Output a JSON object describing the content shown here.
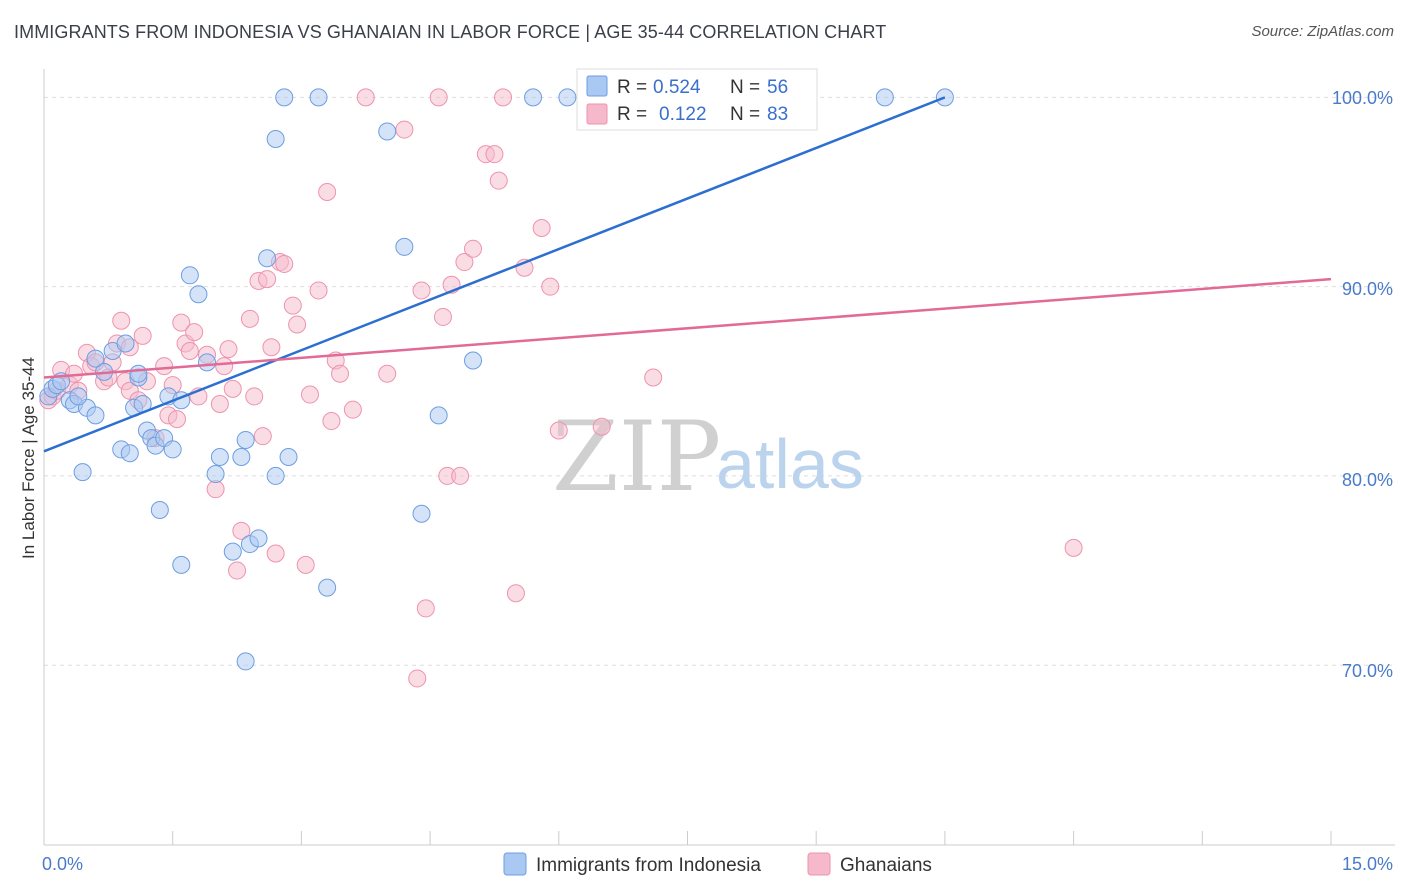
{
  "title": "IMMIGRANTS FROM INDONESIA VS GHANAIAN IN LABOR FORCE | AGE 35-44 CORRELATION CHART",
  "source": "Source: ZipAtlas.com",
  "watermark": {
    "zip": "ZIP",
    "atlas": "atlas"
  },
  "colors": {
    "blue_fill": "#a9c8f2",
    "blue_stroke": "#6d9ee0",
    "blue_line": "#2c6fd1",
    "pink_fill": "#f6b9cc",
    "pink_stroke": "#ee93ae",
    "pink_line": "#e26a96",
    "grid": "#dddddd",
    "axis": "#cccccc",
    "tick_text": "#4a7ac9"
  },
  "chart_data": {
    "type": "scatter",
    "title": "IMMIGRANTS FROM INDONESIA VS GHANAIAN IN LABOR FORCE | AGE 35-44 CORRELATION CHART",
    "xlabel": "",
    "ylabel": "In Labor Force | Age 35-44",
    "xlim": [
      0,
      15
    ],
    "ylim": [
      60.5,
      101.5
    ],
    "x_tick_labels": {
      "left": "0.0%",
      "right": "15.0%"
    },
    "y_ticks": [
      {
        "value": 70,
        "label": "70.0%"
      },
      {
        "value": 80,
        "label": "80.0%"
      },
      {
        "value": 90,
        "label": "90.0%"
      },
      {
        "value": 100,
        "label": "100.0%"
      }
    ],
    "legend_stats": [
      {
        "r_label": "R =",
        "r_value": "0.524",
        "n_label": "N =",
        "n_value": "56"
      },
      {
        "r_label": "R =",
        "r_value": "0.122",
        "n_label": "N =",
        "n_value": "83"
      }
    ],
    "series": [
      {
        "name": "Immigrants from Indonesia",
        "color": "blue",
        "trendline": {
          "x": [
            0,
            10.5
          ],
          "y": [
            81.3,
            100.0
          ]
        },
        "points": [
          [
            0.05,
            84.2
          ],
          [
            0.1,
            84.6
          ],
          [
            0.15,
            84.8
          ],
          [
            0.2,
            85.0
          ],
          [
            0.3,
            84.0
          ],
          [
            0.35,
            83.8
          ],
          [
            0.5,
            83.6
          ],
          [
            0.4,
            84.2
          ],
          [
            0.45,
            80.2
          ],
          [
            0.6,
            83.2
          ],
          [
            0.7,
            85.5
          ],
          [
            0.8,
            86.6
          ],
          [
            0.9,
            81.4
          ],
          [
            1.0,
            81.2
          ],
          [
            1.05,
            83.6
          ],
          [
            1.1,
            85.2
          ],
          [
            1.15,
            83.8
          ],
          [
            1.2,
            82.4
          ],
          [
            1.25,
            82.0
          ],
          [
            1.3,
            81.6
          ],
          [
            1.4,
            82.0
          ],
          [
            1.35,
            78.2
          ],
          [
            1.45,
            84.2
          ],
          [
            1.6,
            84.0
          ],
          [
            1.5,
            81.4
          ],
          [
            1.6,
            75.3
          ],
          [
            1.7,
            90.6
          ],
          [
            1.8,
            89.6
          ],
          [
            1.9,
            86.0
          ],
          [
            2.0,
            80.1
          ],
          [
            2.05,
            81.0
          ],
          [
            2.2,
            76.0
          ],
          [
            2.3,
            81.0
          ],
          [
            2.4,
            76.4
          ],
          [
            2.5,
            76.7
          ],
          [
            2.35,
            81.9
          ],
          [
            2.35,
            70.2
          ],
          [
            2.6,
            91.5
          ],
          [
            2.7,
            97.8
          ],
          [
            2.7,
            80.0
          ],
          [
            2.8,
            100.0
          ],
          [
            2.85,
            81.0
          ],
          [
            3.2,
            100.0
          ],
          [
            3.3,
            74.1
          ],
          [
            4.0,
            98.2
          ],
          [
            4.2,
            92.1
          ],
          [
            4.4,
            78.0
          ],
          [
            4.6,
            83.2
          ],
          [
            5.0,
            86.1
          ],
          [
            5.7,
            100.0
          ],
          [
            6.1,
            100.0
          ],
          [
            9.8,
            100.0
          ],
          [
            10.5,
            100.0
          ],
          [
            1.1,
            85.4
          ],
          [
            0.95,
            87.0
          ],
          [
            0.6,
            86.2
          ]
        ]
      },
      {
        "name": "Ghanaians",
        "color": "pink",
        "trendline": {
          "x": [
            0,
            15
          ],
          "y": [
            85.2,
            90.4
          ]
        },
        "points": [
          [
            0.05,
            84.0
          ],
          [
            0.1,
            84.2
          ],
          [
            0.15,
            84.5
          ],
          [
            0.2,
            85.6
          ],
          [
            0.3,
            84.8
          ],
          [
            0.35,
            85.4
          ],
          [
            0.4,
            84.5
          ],
          [
            0.5,
            86.5
          ],
          [
            0.55,
            85.8
          ],
          [
            0.6,
            86.0
          ],
          [
            0.7,
            85.0
          ],
          [
            0.75,
            85.2
          ],
          [
            0.8,
            86.0
          ],
          [
            0.85,
            87.0
          ],
          [
            0.9,
            88.2
          ],
          [
            0.95,
            85.0
          ],
          [
            1.0,
            84.5
          ],
          [
            1.1,
            84.0
          ],
          [
            1.15,
            87.4
          ],
          [
            1.2,
            85.0
          ],
          [
            1.3,
            82.0
          ],
          [
            1.4,
            85.8
          ],
          [
            1.45,
            83.2
          ],
          [
            1.5,
            84.8
          ],
          [
            1.55,
            83.0
          ],
          [
            1.6,
            88.1
          ],
          [
            1.65,
            87.0
          ],
          [
            1.7,
            86.6
          ],
          [
            1.75,
            87.6
          ],
          [
            1.8,
            84.2
          ],
          [
            1.9,
            86.4
          ],
          [
            2.0,
            79.3
          ],
          [
            2.05,
            83.8
          ],
          [
            2.1,
            85.8
          ],
          [
            2.15,
            86.7
          ],
          [
            2.2,
            84.6
          ],
          [
            2.25,
            75.0
          ],
          [
            2.3,
            77.1
          ],
          [
            2.4,
            88.3
          ],
          [
            2.45,
            84.2
          ],
          [
            2.5,
            90.3
          ],
          [
            2.55,
            82.1
          ],
          [
            2.6,
            90.4
          ],
          [
            2.65,
            86.8
          ],
          [
            2.7,
            75.9
          ],
          [
            2.75,
            91.3
          ],
          [
            2.8,
            91.2
          ],
          [
            2.9,
            89.0
          ],
          [
            2.95,
            88.0
          ],
          [
            3.05,
            75.3
          ],
          [
            3.1,
            84.3
          ],
          [
            3.2,
            89.8
          ],
          [
            3.3,
            95.0
          ],
          [
            3.35,
            82.9
          ],
          [
            3.4,
            86.1
          ],
          [
            3.45,
            85.4
          ],
          [
            3.6,
            83.5
          ],
          [
            3.75,
            100.0
          ],
          [
            4.0,
            85.4
          ],
          [
            4.2,
            98.3
          ],
          [
            4.35,
            69.3
          ],
          [
            4.4,
            89.8
          ],
          [
            4.45,
            73.0
          ],
          [
            4.6,
            100.0
          ],
          [
            4.65,
            88.4
          ],
          [
            4.7,
            80.0
          ],
          [
            4.75,
            90.1
          ],
          [
            4.85,
            80.0
          ],
          [
            4.9,
            91.3
          ],
          [
            5.0,
            92.0
          ],
          [
            5.15,
            97.0
          ],
          [
            5.25,
            97.0
          ],
          [
            5.3,
            95.6
          ],
          [
            5.35,
            100.0
          ],
          [
            5.5,
            73.8
          ],
          [
            5.6,
            91.0
          ],
          [
            5.8,
            93.1
          ],
          [
            5.9,
            90.0
          ],
          [
            6.0,
            82.4
          ],
          [
            6.5,
            82.6
          ],
          [
            7.1,
            85.2
          ],
          [
            12.0,
            76.2
          ],
          [
            1.0,
            86.8
          ]
        ]
      }
    ],
    "legend": [
      "Immigrants from Indonesia",
      "Ghanaians"
    ]
  }
}
